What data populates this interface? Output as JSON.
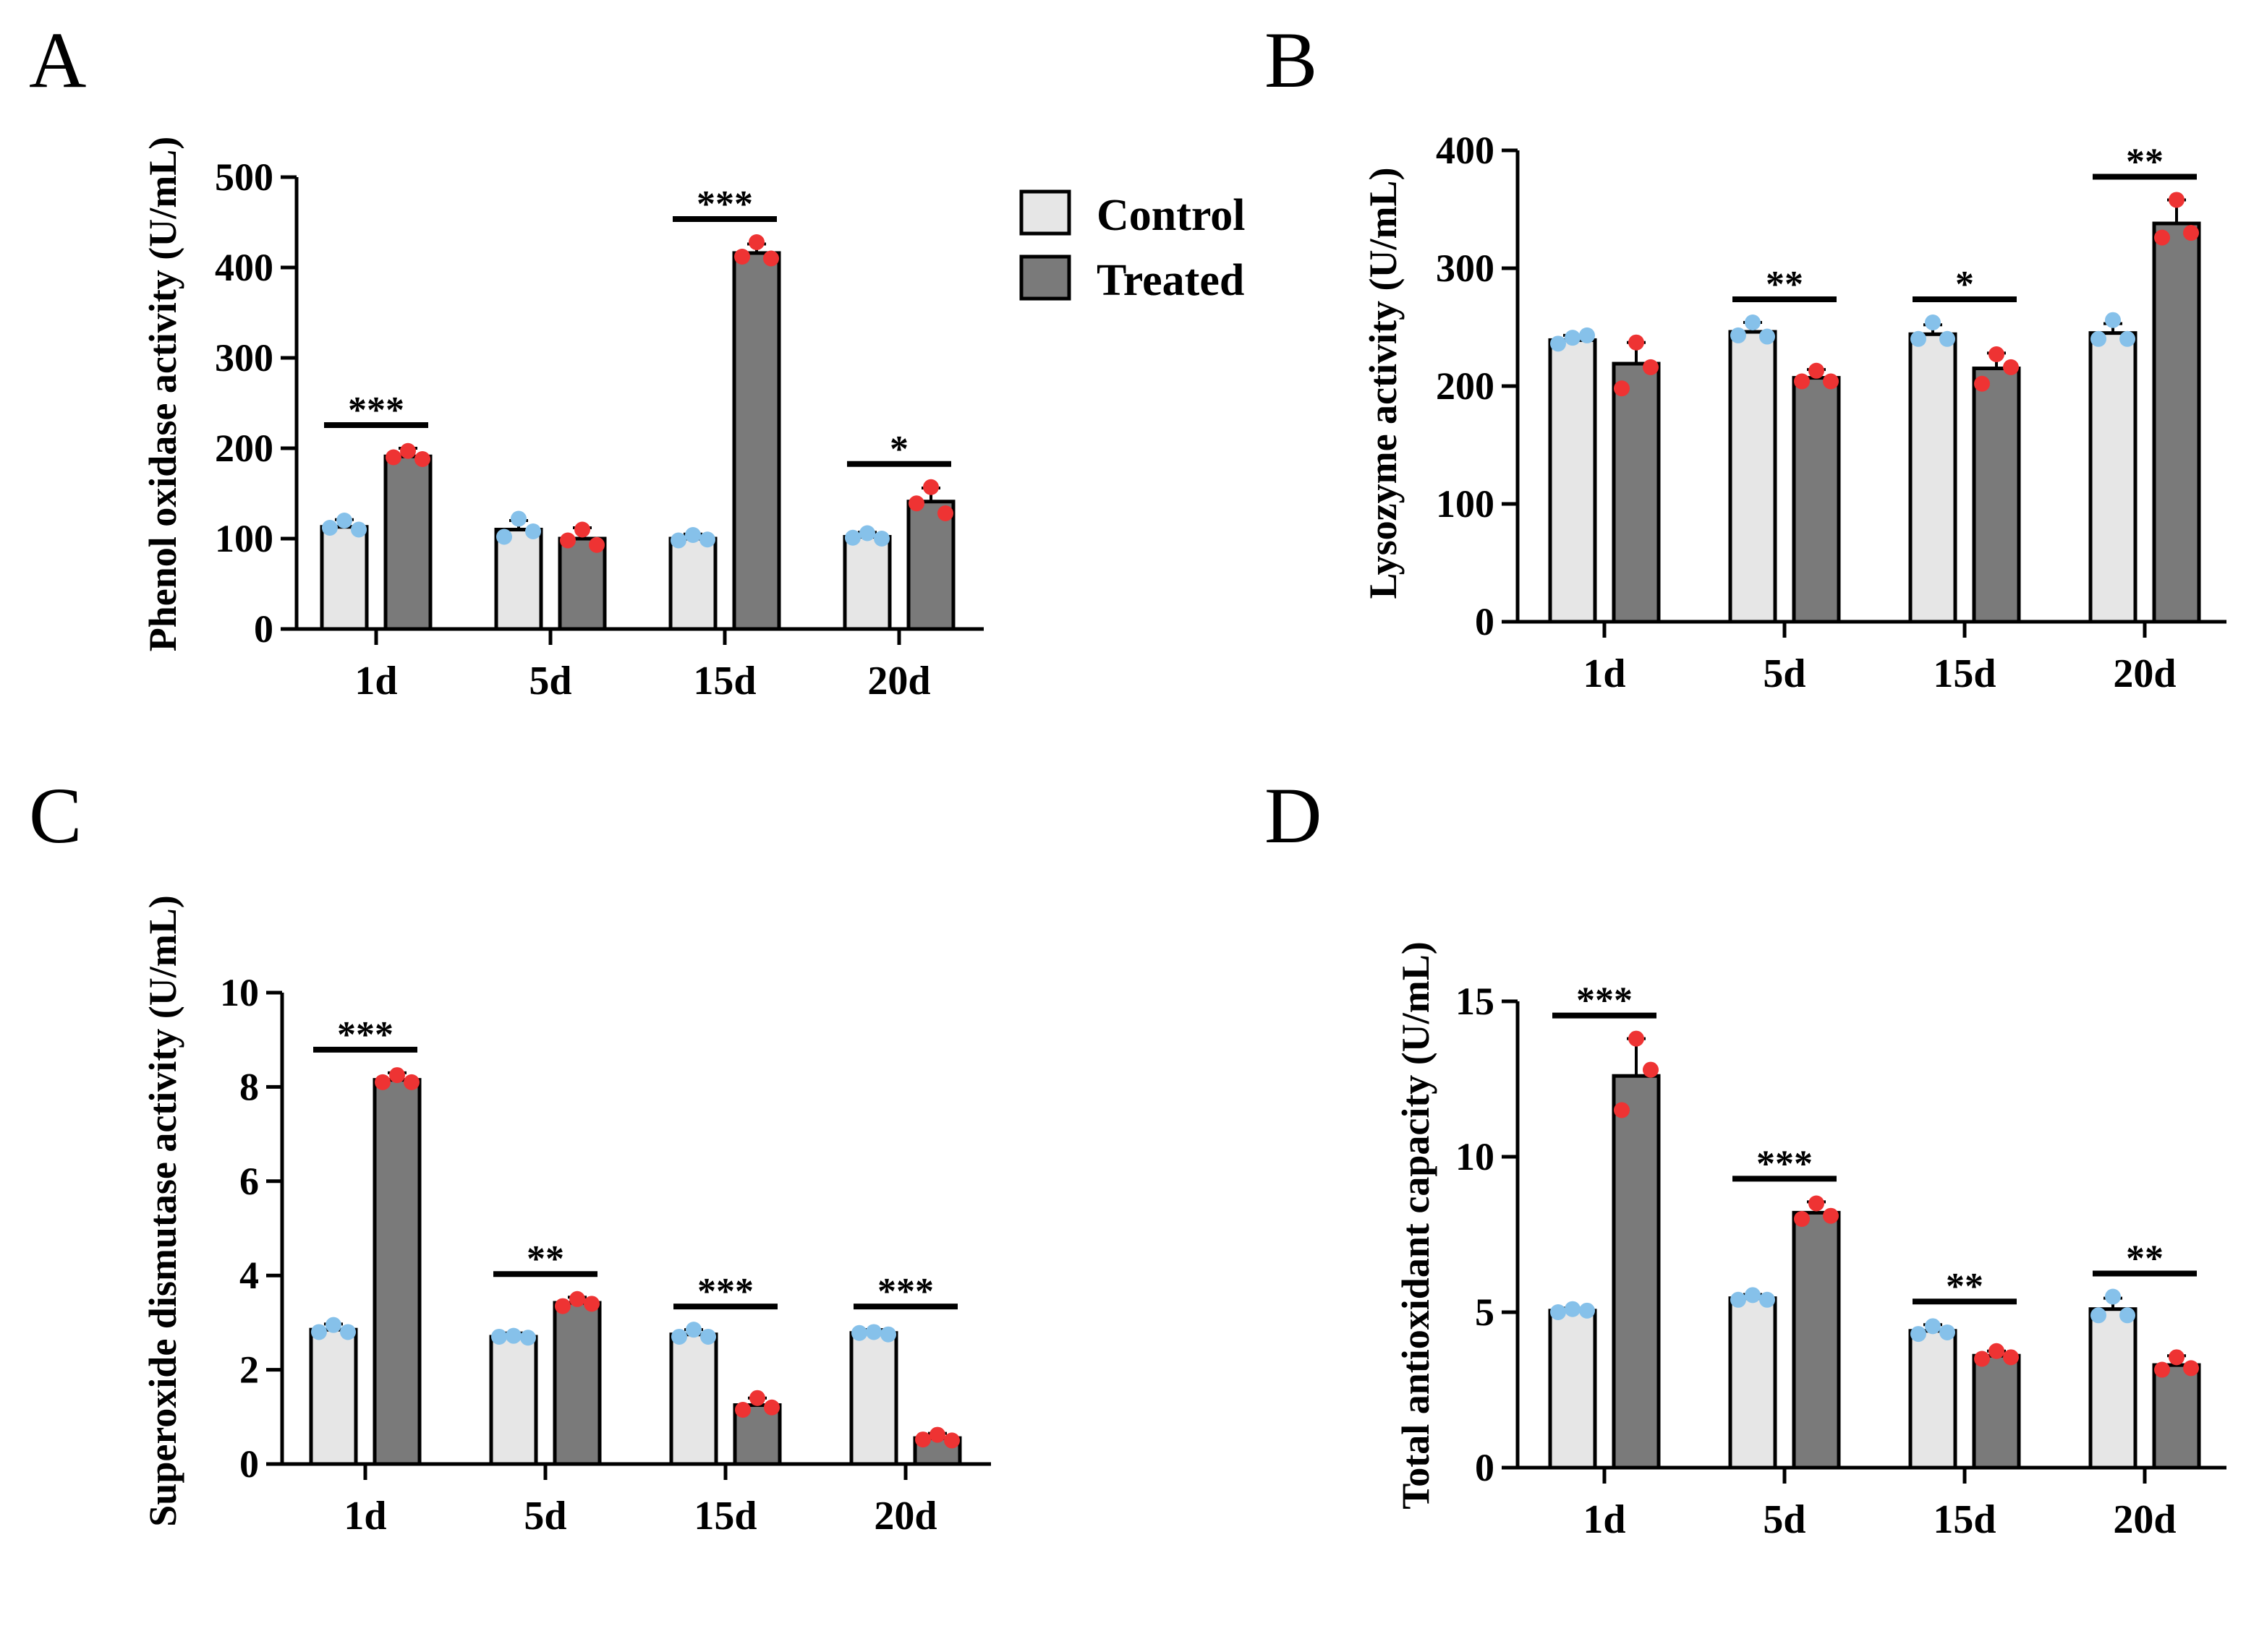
{
  "figure": {
    "series_names": [
      "Control",
      "Treated"
    ],
    "colors": {
      "control_fill": "#e6e6e6",
      "treated_fill": "#7a7a7a",
      "control_point": "#86c1ea",
      "treated_point": "#ee3333",
      "outline": "#000000"
    }
  },
  "legend": {
    "items": [
      {
        "label": "Control"
      },
      {
        "label": "Treated"
      }
    ]
  },
  "chart_data": [
    {
      "panel": "A",
      "type": "bar",
      "ylabel": "Phenol oxidase activity (U/mL)",
      "categories": [
        "1d",
        "5d",
        "15d",
        "20d"
      ],
      "ylim": [
        0,
        500
      ],
      "yticks": [
        0,
        100,
        200,
        300,
        400,
        500
      ],
      "series": [
        {
          "name": "Control",
          "values": [
            113,
            110,
            100,
            102
          ],
          "errors": [
            8,
            10,
            5,
            5
          ],
          "points": [
            [
              120,
              110,
              112
            ],
            [
              122,
              108,
              102
            ],
            [
              104,
              99,
              98
            ],
            [
              106,
              100,
              101
            ]
          ]
        },
        {
          "name": "Treated",
          "values": [
            191,
            100,
            416,
            141
          ],
          "errors": [
            9,
            12,
            10,
            15
          ],
          "points": [
            [
              197,
              188,
              190
            ],
            [
              110,
              93,
              98
            ],
            [
              428,
              410,
              412
            ],
            [
              157,
              128,
              139
            ]
          ]
        }
      ],
      "significance": [
        "***",
        "",
        "***",
        "*"
      ]
    },
    {
      "panel": "B",
      "type": "bar",
      "ylabel": "Lysozyme activity (U/mL)",
      "categories": [
        "1d",
        "5d",
        "15d",
        "20d"
      ],
      "ylim": [
        0,
        400
      ],
      "yticks": [
        0,
        100,
        200,
        300,
        400
      ],
      "series": [
        {
          "name": "Control",
          "values": [
            239,
            246,
            244,
            245
          ],
          "errors": [
            4,
            8,
            8,
            8
          ],
          "points": [
            [
              241,
              243,
              236
            ],
            [
              254,
              242,
              243
            ],
            [
              254,
              240,
              240
            ],
            [
              256,
              240,
              240
            ]
          ]
        },
        {
          "name": "Treated",
          "values": [
            219,
            207,
            215,
            338
          ],
          "errors": [
            18,
            7,
            13,
            20
          ],
          "points": [
            [
              237,
              216,
              198
            ],
            [
              213,
              204,
              204
            ],
            [
              227,
              216,
              202
            ],
            [
              358,
              330,
              326
            ]
          ]
        }
      ],
      "significance": [
        "",
        "**",
        "*",
        "**"
      ]
    },
    {
      "panel": "C",
      "type": "bar",
      "ylabel": "Superoxide dismutase activity (U/mL)",
      "categories": [
        "1d",
        "5d",
        "15d",
        "20d"
      ],
      "ylim": [
        0,
        10
      ],
      "yticks": [
        0,
        2,
        4,
        6,
        8,
        10
      ],
      "series": [
        {
          "name": "Control",
          "values": [
            2.85,
            2.7,
            2.75,
            2.78
          ],
          "errors": [
            0.12,
            0.08,
            0.1,
            0.07
          ],
          "points": [
            [
              2.95,
              2.8,
              2.8
            ],
            [
              2.72,
              2.68,
              2.7
            ],
            [
              2.85,
              2.7,
              2.7
            ],
            [
              2.8,
              2.75,
              2.78
            ]
          ]
        },
        {
          "name": "Treated",
          "values": [
            8.15,
            3.42,
            1.25,
            0.55
          ],
          "errors": [
            0.15,
            0.12,
            0.15,
            0.1
          ],
          "points": [
            [
              8.25,
              8.1,
              8.1
            ],
            [
              3.5,
              3.4,
              3.35
            ],
            [
              1.4,
              1.2,
              1.15
            ],
            [
              0.62,
              0.5,
              0.52
            ]
          ]
        }
      ],
      "significance": [
        "***",
        "**",
        "***",
        "***"
      ]
    },
    {
      "panel": "D",
      "type": "bar",
      "ylabel": "Total antioxidant capacity (U/mL)",
      "categories": [
        "1d",
        "5d",
        "15d",
        "20d"
      ],
      "ylim": [
        0,
        15
      ],
      "yticks": [
        0,
        5,
        10,
        15
      ],
      "series": [
        {
          "name": "Control",
          "values": [
            5.05,
            5.45,
            4.4,
            5.1
          ],
          "errors": [
            0.08,
            0.12,
            0.2,
            0.35
          ],
          "points": [
            [
              5.1,
              5.05,
              5.0
            ],
            [
              5.55,
              5.4,
              5.4
            ],
            [
              4.55,
              4.35,
              4.3
            ],
            [
              5.5,
              4.9,
              4.9
            ]
          ]
        },
        {
          "name": "Treated",
          "values": [
            12.6,
            8.2,
            3.6,
            3.3
          ],
          "errors": [
            1.2,
            0.35,
            0.15,
            0.3
          ],
          "points": [
            [
              13.8,
              12.8,
              11.5
            ],
            [
              8.5,
              8.1,
              8.0
            ],
            [
              3.75,
              3.55,
              3.5
            ],
            [
              3.55,
              3.2,
              3.15
            ]
          ]
        }
      ],
      "significance": [
        "***",
        "***",
        "**",
        "**"
      ]
    }
  ]
}
